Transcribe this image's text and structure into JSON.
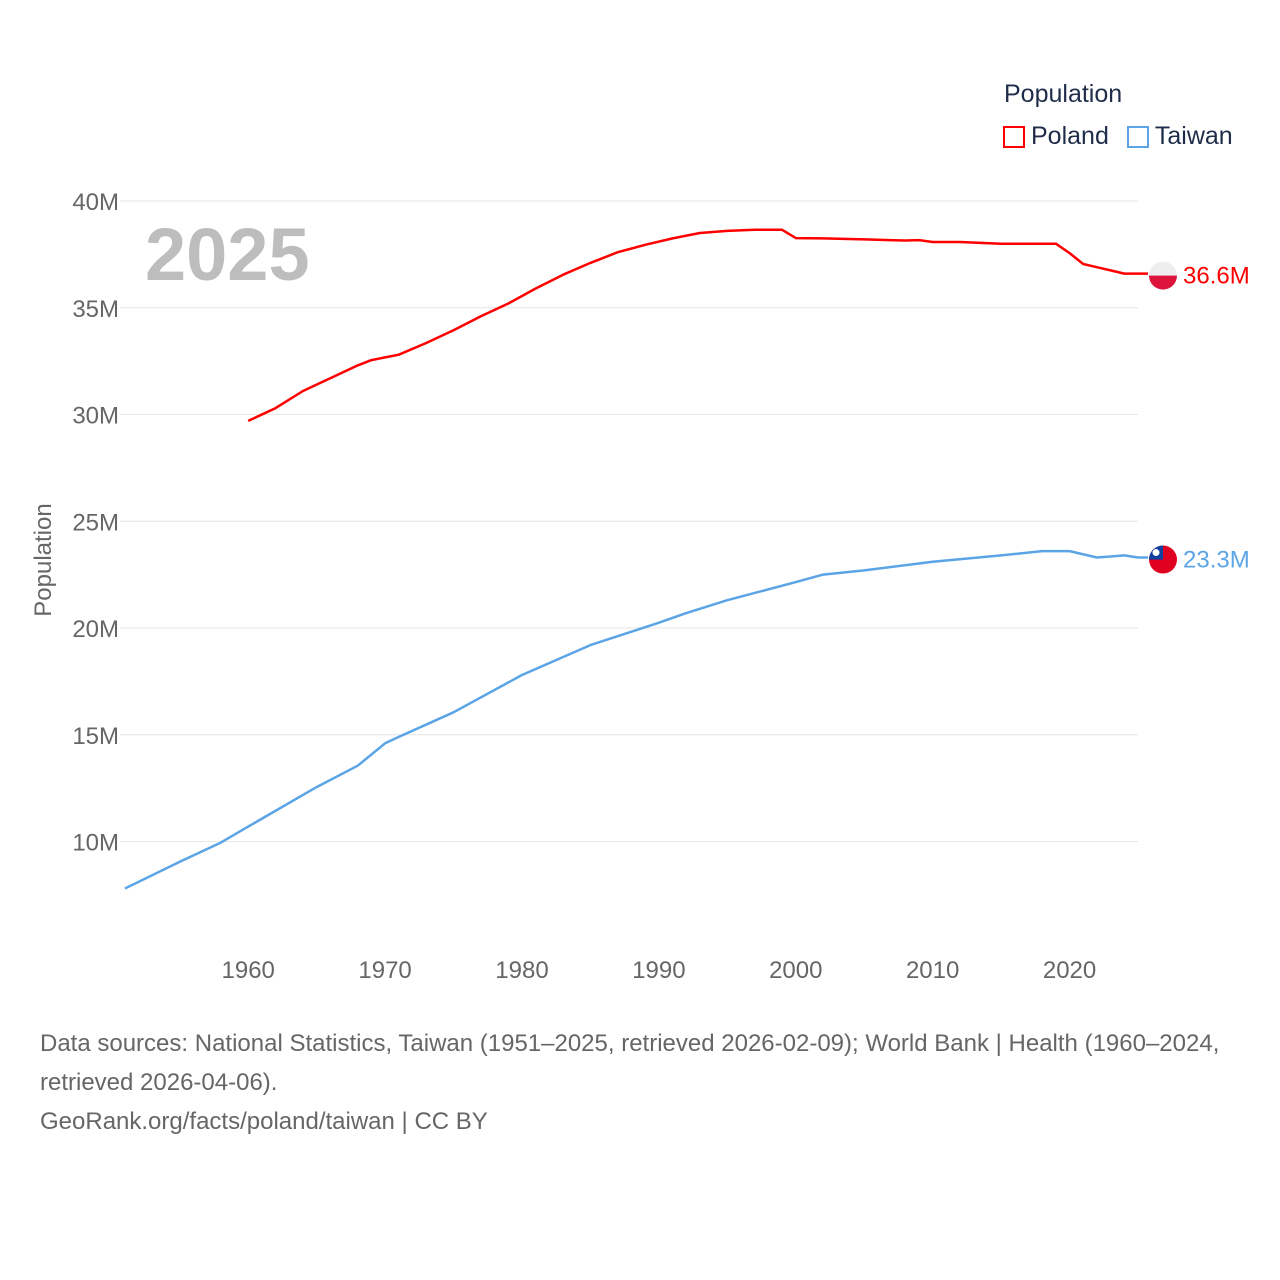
{
  "chart_data": {
    "type": "line",
    "title": "",
    "year_label": "2025",
    "xlabel": "",
    "ylabel": "Population",
    "xlim": [
      1951,
      2025
    ],
    "ylim": [
      5000000,
      41000000
    ],
    "x_ticks": [
      1960,
      1970,
      1980,
      1990,
      2000,
      2010,
      2020
    ],
    "y_ticks": [
      10000000,
      15000000,
      20000000,
      25000000,
      30000000,
      35000000,
      40000000
    ],
    "y_tick_labels": [
      "10M",
      "15M",
      "20M",
      "25M",
      "30M",
      "35M",
      "40M"
    ],
    "grid": true,
    "legend": {
      "title": "Population",
      "position": "top-right"
    },
    "series": [
      {
        "name": "Poland",
        "color": "#ff0000",
        "end_label": "36.6M",
        "flag": "poland-flag",
        "x": [
          1960,
          1962,
          1964,
          1966,
          1968,
          1969,
          1971,
          1973,
          1975,
          1977,
          1979,
          1981,
          1983,
          1985,
          1987,
          1989,
          1991,
          1993,
          1995,
          1997,
          1999,
          2000,
          2002,
          2005,
          2008,
          2009,
          2010,
          2012,
          2015,
          2019,
          2020,
          2021,
          2022,
          2023,
          2024
        ],
        "y": [
          29.7,
          30.3,
          31.1,
          31.7,
          32.3,
          32.55,
          32.8,
          33.35,
          33.95,
          34.6,
          35.2,
          35.9,
          36.55,
          37.1,
          37.6,
          37.95,
          38.25,
          38.5,
          38.6,
          38.65,
          38.65,
          38.26,
          38.25,
          38.2,
          38.15,
          38.17,
          38.08,
          38.08,
          38.0,
          38.0,
          37.56,
          37.05,
          36.9,
          36.75,
          36.6
        ]
      },
      {
        "name": "Taiwan",
        "color": "#5ba4e6",
        "end_label": "23.3M",
        "flag": "taiwan-flag",
        "x": [
          1951,
          1955,
          1958,
          1960,
          1965,
          1968,
          1970,
          1971,
          1975,
          1980,
          1985,
          1990,
          1992,
          1995,
          2000,
          2002,
          2005,
          2010,
          2015,
          2018,
          2020,
          2022,
          2023,
          2024,
          2025
        ],
        "y": [
          7.8,
          9.05,
          9.95,
          10.7,
          12.55,
          13.55,
          14.6,
          14.9,
          16.05,
          17.8,
          19.2,
          20.25,
          20.7,
          21.3,
          22.15,
          22.5,
          22.7,
          23.1,
          23.4,
          23.6,
          23.6,
          23.3,
          23.35,
          23.4,
          23.3
        ]
      }
    ],
    "y_unit": "millions"
  },
  "footer": {
    "sources": "Data sources: National Statistics, Taiwan (1951–2025, retrieved 2026-02-09); World Bank | Health (1960–2024, retrieved 2026-04-06).",
    "attribution": "GeoRank.org/facts/poland/taiwan | CC BY"
  }
}
